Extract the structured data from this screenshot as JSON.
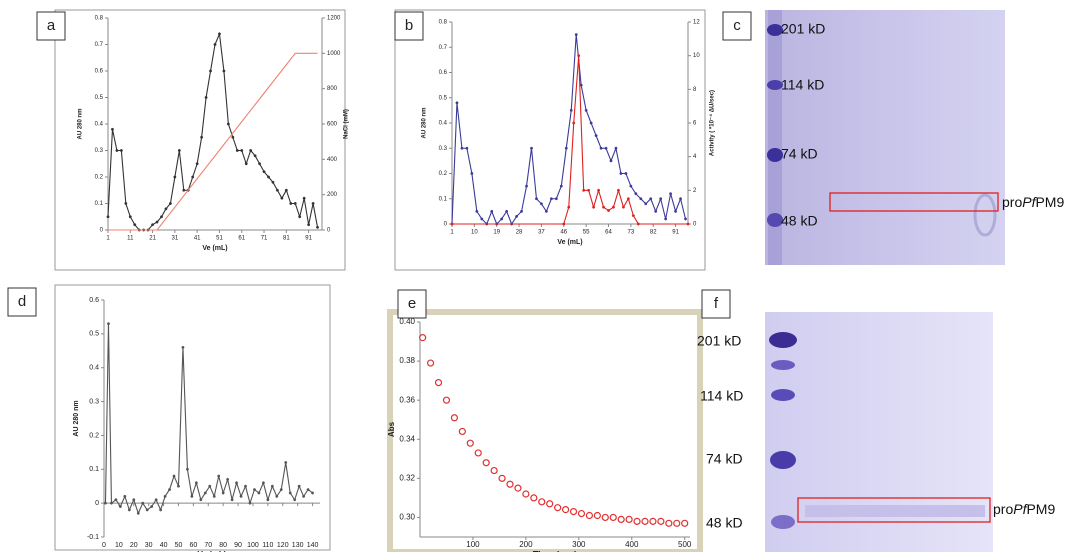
{
  "panel_labels": [
    "a",
    "b",
    "c",
    "d",
    "e",
    "f"
  ],
  "chart_data": [
    {
      "type": "line",
      "x_label": "Ve (mL)",
      "y_label": "AU 280 nm",
      "y2_label": "NaCl (mM)",
      "xlim": [
        1,
        97
      ],
      "xticks": [
        1,
        11,
        21,
        31,
        41,
        51,
        61,
        71,
        81,
        91
      ],
      "ylim": [
        0,
        0.8
      ],
      "yticks": [
        0,
        0.1,
        0.2,
        0.3,
        0.4,
        0.5,
        0.6,
        0.7,
        0.8
      ],
      "y2lim": [
        0,
        1200
      ],
      "y2ticks": [
        0,
        200,
        400,
        600,
        800,
        1000,
        1200
      ],
      "series": [
        {
          "color": "#333333",
          "axis": "y",
          "markers": true,
          "x": [
            1,
            3,
            5,
            7,
            9,
            11,
            13,
            15,
            17,
            19,
            21,
            23,
            25,
            27,
            29,
            31,
            33,
            35,
            37,
            39,
            41,
            43,
            45,
            47,
            49,
            51,
            53,
            55,
            57,
            59,
            61,
            63,
            65,
            67,
            69,
            71,
            73,
            75,
            77,
            79,
            81,
            83,
            85,
            87,
            89,
            91,
            93,
            95
          ],
          "values": [
            0.05,
            0.38,
            0.3,
            0.3,
            0.1,
            0.05,
            0.02,
            0,
            0,
            0,
            0.02,
            0.03,
            0.05,
            0.08,
            0.1,
            0.2,
            0.3,
            0.15,
            0.15,
            0.2,
            0.25,
            0.35,
            0.5,
            0.6,
            0.7,
            0.74,
            0.6,
            0.4,
            0.35,
            0.3,
            0.3,
            0.25,
            0.3,
            0.28,
            0.25,
            0.22,
            0.2,
            0.18,
            0.15,
            0.12,
            0.15,
            0.1,
            0.1,
            0.05,
            0.12,
            0.02,
            0.1,
            0.01
          ]
        },
        {
          "color": "#f08070",
          "axis": "y2",
          "markers": false,
          "x": [
            1,
            23,
            85,
            95
          ],
          "values": [
            0,
            0,
            1000,
            1000
          ]
        }
      ]
    },
    {
      "type": "line",
      "x_label": "Ve (mL)",
      "y_label": "AU 280 nm",
      "y2_label": "Activity ( *10⁻⁴ ΔU/sec)",
      "xlim": [
        1,
        96
      ],
      "xticks": [
        1,
        10,
        19,
        28,
        37,
        46,
        55,
        64,
        73,
        82,
        91
      ],
      "ylim": [
        0,
        0.8
      ],
      "yticks": [
        0,
        0.1,
        0.2,
        0.3,
        0.4,
        0.5,
        0.6,
        0.7,
        0.8
      ],
      "y2lim": [
        0,
        12
      ],
      "y2ticks": [
        0,
        2,
        4,
        6,
        8,
        10,
        12
      ],
      "series": [
        {
          "color": "#3b3b9a",
          "axis": "y",
          "markers": true,
          "x": [
            1,
            3,
            5,
            7,
            9,
            11,
            13,
            15,
            17,
            19,
            21,
            23,
            25,
            27,
            29,
            31,
            33,
            35,
            37,
            39,
            41,
            43,
            45,
            47,
            49,
            51,
            53,
            55,
            57,
            59,
            61,
            63,
            65,
            67,
            69,
            71,
            73,
            75,
            77,
            79,
            81,
            83,
            85,
            87,
            89,
            91,
            93,
            95
          ],
          "values": [
            0,
            0.48,
            0.3,
            0.3,
            0.2,
            0.05,
            0.02,
            0,
            0.05,
            0,
            0.02,
            0.05,
            0,
            0.03,
            0.05,
            0.15,
            0.3,
            0.1,
            0.08,
            0.05,
            0.1,
            0.1,
            0.15,
            0.3,
            0.45,
            0.75,
            0.55,
            0.45,
            0.4,
            0.35,
            0.3,
            0.3,
            0.25,
            0.3,
            0.2,
            0.2,
            0.15,
            0.12,
            0.1,
            0.08,
            0.1,
            0.05,
            0.1,
            0.02,
            0.12,
            0.05,
            0.1,
            0.02
          ]
        },
        {
          "color": "#e02020",
          "axis": "y2",
          "markers": true,
          "x": [
            1,
            46,
            48,
            50,
            52,
            54,
            56,
            58,
            60,
            62,
            64,
            66,
            68,
            70,
            72,
            74,
            76,
            96
          ],
          "values": [
            0,
            0,
            1,
            6,
            10,
            2,
            2,
            1,
            2,
            1,
            0.8,
            1,
            2,
            1,
            1.5,
            0.5,
            0,
            0
          ]
        }
      ]
    },
    {
      "type": "line",
      "x_label": "Ve (mL)",
      "y_label": "AU 280 nm",
      "xlim": [
        0,
        145
      ],
      "xticks": [
        0,
        10,
        20,
        30,
        40,
        50,
        60,
        70,
        80,
        90,
        100,
        110,
        120,
        130,
        140
      ],
      "ylim": [
        -0.1,
        0.6
      ],
      "yticks": [
        -0.1,
        0,
        0.1,
        0.2,
        0.3,
        0.4,
        0.5,
        0.6
      ],
      "series": [
        {
          "color": "#555555",
          "axis": "y",
          "markers": true,
          "x": [
            1,
            3,
            5,
            8,
            11,
            14,
            17,
            20,
            23,
            26,
            29,
            32,
            35,
            38,
            41,
            44,
            47,
            50,
            53,
            56,
            59,
            62,
            65,
            68,
            71,
            74,
            77,
            80,
            83,
            86,
            89,
            92,
            95,
            98,
            101,
            104,
            107,
            110,
            113,
            116,
            119,
            122,
            125,
            128,
            131,
            134,
            137,
            140
          ],
          "values": [
            0,
            0.53,
            0,
            0.01,
            -0.01,
            0.02,
            -0.02,
            0.01,
            -0.03,
            0,
            -0.02,
            -0.01,
            0.01,
            -0.02,
            0.02,
            0.04,
            0.08,
            0.05,
            0.46,
            0.1,
            0.02,
            0.06,
            0.01,
            0.03,
            0.05,
            0.02,
            0.08,
            0.03,
            0.07,
            0.01,
            0.06,
            0.02,
            0.05,
            0.0,
            0.04,
            0.03,
            0.06,
            0.01,
            0.05,
            0.02,
            0.04,
            0.12,
            0.03,
            0.01,
            0.05,
            0.02,
            0.04,
            0.03
          ]
        }
      ]
    },
    {
      "type": "scatter",
      "x_label": "Time (sec)",
      "y_label": "Abs",
      "xlim": [
        0,
        510
      ],
      "xticks": [
        100,
        200,
        300,
        400,
        500
      ],
      "ylim": [
        0.29,
        0.4
      ],
      "yticks": [
        {
          "value": 0.3,
          "label": "0.30"
        },
        0.32,
        0.34,
        0.36,
        0.38,
        {
          "value": 0.4,
          "label": "0.40"
        }
      ],
      "series": [
        {
          "color": "#e03030",
          "axis": "y",
          "markers": true,
          "x": [
            5,
            20,
            35,
            50,
            65,
            80,
            95,
            110,
            125,
            140,
            155,
            170,
            185,
            200,
            215,
            230,
            245,
            260,
            275,
            290,
            305,
            320,
            335,
            350,
            365,
            380,
            395,
            410,
            425,
            440,
            455,
            470,
            485,
            500
          ],
          "values": [
            0.392,
            0.379,
            0.369,
            0.36,
            0.351,
            0.344,
            0.338,
            0.333,
            0.328,
            0.324,
            0.32,
            0.317,
            0.315,
            0.312,
            0.31,
            0.308,
            0.307,
            0.305,
            0.304,
            0.303,
            0.302,
            0.301,
            0.301,
            0.3,
            0.3,
            0.299,
            0.299,
            0.298,
            0.298,
            0.298,
            0.298,
            0.297,
            0.297,
            0.297
          ]
        }
      ]
    }
  ],
  "gels": [
    {
      "markers": [
        "201 kD",
        "114 kD",
        "74 kD",
        "48 kD"
      ],
      "band_label": [
        "pro",
        "Pf",
        "PM9"
      ]
    },
    {
      "markers": [
        "201 kD",
        "114 kD",
        "74 kD",
        "48 kD"
      ],
      "band_label": [
        "pro",
        "Pf",
        "PM9"
      ]
    }
  ]
}
